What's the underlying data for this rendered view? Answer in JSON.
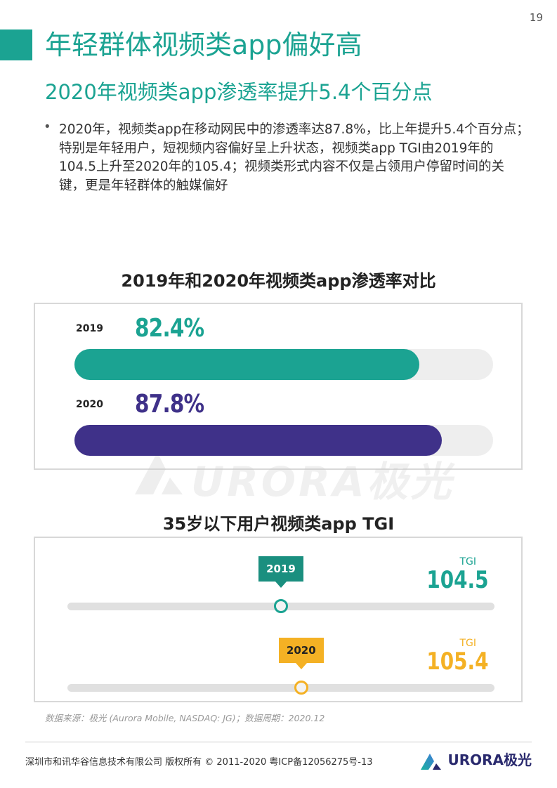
{
  "page": {
    "number": "19"
  },
  "header": {
    "title": "年轻群体视频类app偏好高",
    "subtitle": "2020年视频类app渗透率提升5.4个百分点"
  },
  "bullet": {
    "marker": "•",
    "text": "2020年，视频类app在移动网民中的渗透率达87.8%，比上年提升5.4个百分点；特别是年轻用户，短视频内容偏好呈上升状态，视频类app TGI由2019年的104.5上升至2020年的105.4；视频类形式内容不仅是占领用户停留时间的关键，更是年轻群体的触媒偏好"
  },
  "chart_data": [
    {
      "type": "bar",
      "title": "2019年和2020年视频类app渗透率对比",
      "categories": [
        "2019",
        "2020"
      ],
      "values": [
        82.4,
        87.8
      ],
      "value_labels": [
        "82.4%",
        "87.8%"
      ],
      "ylim": [
        0,
        100
      ],
      "orientation": "horizontal",
      "colors": [
        "#1ba392",
        "#3f3189"
      ]
    },
    {
      "type": "scatter",
      "title": "35岁以下用户视频类app TGI",
      "categories": [
        "2019",
        "2020"
      ],
      "values": [
        104.5,
        105.4
      ],
      "value_labels": [
        "104.5",
        "105.4"
      ],
      "series_label": "TGI",
      "colors": [
        "#1ba392",
        "#f4b124"
      ]
    }
  ],
  "watermark": {
    "text": "URORA极光"
  },
  "source": {
    "text": "数据来源：极光 (Aurora Mobile, NASDAQ: JG)；数据周期：2020.12"
  },
  "footer": {
    "copyright": "深圳市和讯华谷信息技术有限公司 版权所有 © 2011-2020 粤ICP备12056275号-13",
    "brand": "URORA极光",
    "logo_icon": "aurora-logo-icon"
  }
}
